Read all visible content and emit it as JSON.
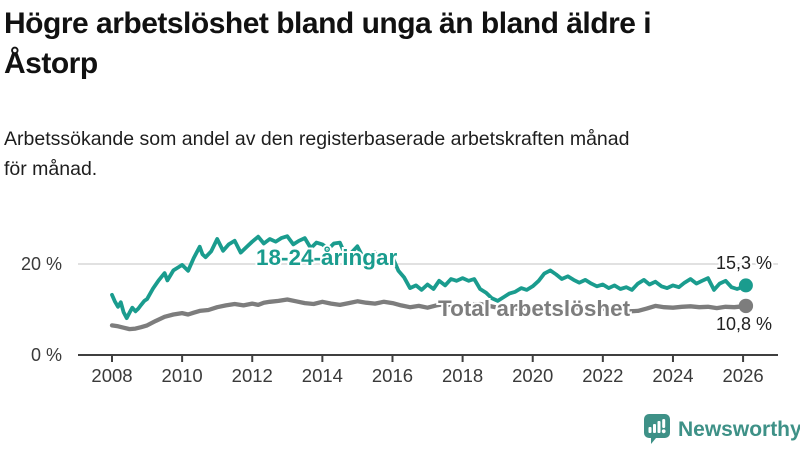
{
  "title": "Högre arbetslöshet bland unga än bland äldre i Åstorp",
  "title_lines": [
    "Högre arbetslöshet bland unga än bland äldre i",
    "Åstorp"
  ],
  "subtitle": "Arbetssökande som andel av den registerbaserade arbetskraften månad för månad.",
  "subtitle_lines": [
    "Arbetssökande som andel av den registerbaserade arbetskraften månad",
    "för månad."
  ],
  "branding": {
    "name": "Newsworthy",
    "icon": "newsworthy-speech-bubble-chart-icon",
    "color": "#3e9187"
  },
  "colors": {
    "background": "#ffffff",
    "young_series": "#1a9c8e",
    "total_series": "#7d7d7d",
    "gridline": "#cfcfcf",
    "axis": "#3f3f3f",
    "tick_text": "#3a3a3a",
    "value_label_text": "#222222"
  },
  "chart_data": {
    "type": "line",
    "title": "Högre arbetslöshet bland unga än bland äldre i Åstorp",
    "subtitle": "Arbetssökande som andel av den registerbaserade arbetskraften månad för månad.",
    "unit": "%",
    "grid": "horizontal-only",
    "legend_position": "inline-labels",
    "x_axis": {
      "range": [
        2007.9,
        2026.6
      ],
      "ticks": [
        "2008",
        "2010",
        "2012",
        "2014",
        "2016",
        "2018",
        "2020",
        "2022",
        "2024",
        "2026"
      ]
    },
    "y_axis": {
      "range": [
        0,
        29
      ],
      "ticks": [
        "0 %",
        "20 %"
      ],
      "tick_values": [
        0,
        20
      ],
      "gridlines": [
        20
      ]
    },
    "series": [
      {
        "name": "18-24-åringar",
        "color": "#1a9c8e",
        "end_label": "15,3 %",
        "end_value": 15.3,
        "points": [
          [
            2008.0,
            13.2
          ],
          [
            2008.08,
            11.8
          ],
          [
            2008.17,
            10.6
          ],
          [
            2008.25,
            11.6
          ],
          [
            2008.33,
            9.4
          ],
          [
            2008.42,
            8.1
          ],
          [
            2008.5,
            9.3
          ],
          [
            2008.58,
            10.4
          ],
          [
            2008.67,
            9.6
          ],
          [
            2008.75,
            10.2
          ],
          [
            2008.83,
            11.0
          ],
          [
            2008.92,
            11.9
          ],
          [
            2009.0,
            12.3
          ],
          [
            2009.17,
            14.6
          ],
          [
            2009.33,
            16.4
          ],
          [
            2009.5,
            18.0
          ],
          [
            2009.58,
            16.4
          ],
          [
            2009.75,
            18.6
          ],
          [
            2009.92,
            19.4
          ],
          [
            2010.0,
            19.8
          ],
          [
            2010.17,
            18.5
          ],
          [
            2010.33,
            21.3
          ],
          [
            2010.5,
            23.8
          ],
          [
            2010.58,
            22.1
          ],
          [
            2010.67,
            21.5
          ],
          [
            2010.83,
            22.8
          ],
          [
            2011.0,
            25.5
          ],
          [
            2011.17,
            22.9
          ],
          [
            2011.33,
            24.3
          ],
          [
            2011.5,
            25.1
          ],
          [
            2011.67,
            22.5
          ],
          [
            2011.83,
            23.7
          ],
          [
            2012.0,
            24.9
          ],
          [
            2012.17,
            26.0
          ],
          [
            2012.33,
            24.5
          ],
          [
            2012.5,
            25.5
          ],
          [
            2012.67,
            24.9
          ],
          [
            2012.83,
            25.7
          ],
          [
            2013.0,
            26.1
          ],
          [
            2013.17,
            24.3
          ],
          [
            2013.33,
            25.1
          ],
          [
            2013.5,
            25.7
          ],
          [
            2013.67,
            23.5
          ],
          [
            2013.83,
            24.7
          ],
          [
            2014.0,
            24.3
          ],
          [
            2014.17,
            23.3
          ],
          [
            2014.33,
            24.5
          ],
          [
            2014.5,
            24.7
          ],
          [
            2014.67,
            21.7
          ],
          [
            2014.83,
            22.5
          ],
          [
            2015.0,
            23.9
          ],
          [
            2015.17,
            21.3
          ],
          [
            2015.33,
            22.1
          ],
          [
            2015.5,
            22.5
          ],
          [
            2015.67,
            20.3
          ],
          [
            2015.83,
            20.9
          ],
          [
            2016.0,
            21.5
          ],
          [
            2016.17,
            18.5
          ],
          [
            2016.33,
            17.1
          ],
          [
            2016.5,
            14.7
          ],
          [
            2016.67,
            15.3
          ],
          [
            2016.83,
            14.3
          ],
          [
            2017.0,
            15.5
          ],
          [
            2017.17,
            14.5
          ],
          [
            2017.33,
            16.3
          ],
          [
            2017.5,
            15.3
          ],
          [
            2017.67,
            16.7
          ],
          [
            2017.83,
            16.3
          ],
          [
            2018.0,
            16.9
          ],
          [
            2018.17,
            16.3
          ],
          [
            2018.33,
            16.7
          ],
          [
            2018.5,
            14.5
          ],
          [
            2018.67,
            13.7
          ],
          [
            2018.83,
            12.5
          ],
          [
            2019.0,
            11.9
          ],
          [
            2019.17,
            12.7
          ],
          [
            2019.33,
            13.5
          ],
          [
            2019.5,
            13.9
          ],
          [
            2019.67,
            14.7
          ],
          [
            2019.83,
            14.3
          ],
          [
            2020.0,
            15.1
          ],
          [
            2020.17,
            16.3
          ],
          [
            2020.33,
            17.9
          ],
          [
            2020.5,
            18.6
          ],
          [
            2020.67,
            17.7
          ],
          [
            2020.83,
            16.7
          ],
          [
            2021.0,
            17.3
          ],
          [
            2021.17,
            16.5
          ],
          [
            2021.33,
            15.9
          ],
          [
            2021.5,
            16.5
          ],
          [
            2021.67,
            15.7
          ],
          [
            2021.83,
            15.1
          ],
          [
            2022.0,
            15.5
          ],
          [
            2022.17,
            14.7
          ],
          [
            2022.33,
            15.3
          ],
          [
            2022.5,
            14.5
          ],
          [
            2022.67,
            14.9
          ],
          [
            2022.83,
            14.3
          ],
          [
            2023.0,
            15.7
          ],
          [
            2023.17,
            16.5
          ],
          [
            2023.33,
            15.5
          ],
          [
            2023.5,
            16.1
          ],
          [
            2023.67,
            15.1
          ],
          [
            2023.83,
            14.7
          ],
          [
            2024.0,
            15.3
          ],
          [
            2024.17,
            14.9
          ],
          [
            2024.33,
            15.9
          ],
          [
            2024.5,
            16.7
          ],
          [
            2024.67,
            15.7
          ],
          [
            2024.83,
            16.3
          ],
          [
            2025.0,
            16.9
          ],
          [
            2025.17,
            14.3
          ],
          [
            2025.33,
            15.7
          ],
          [
            2025.5,
            16.3
          ],
          [
            2025.67,
            14.9
          ],
          [
            2025.83,
            14.5
          ],
          [
            2026.0,
            15.0
          ],
          [
            2026.08,
            15.3
          ]
        ]
      },
      {
        "name": "Total arbetslöshet",
        "color": "#7d7d7d",
        "end_label": "10,8 %",
        "end_value": 10.8,
        "points": [
          [
            2008.0,
            6.5
          ],
          [
            2008.17,
            6.3
          ],
          [
            2008.33,
            6.0
          ],
          [
            2008.5,
            5.7
          ],
          [
            2008.67,
            5.8
          ],
          [
            2008.83,
            6.1
          ],
          [
            2009.0,
            6.5
          ],
          [
            2009.25,
            7.5
          ],
          [
            2009.5,
            8.4
          ],
          [
            2009.75,
            8.9
          ],
          [
            2010.0,
            9.2
          ],
          [
            2010.17,
            8.9
          ],
          [
            2010.33,
            9.3
          ],
          [
            2010.5,
            9.7
          ],
          [
            2010.75,
            9.9
          ],
          [
            2011.0,
            10.5
          ],
          [
            2011.25,
            10.9
          ],
          [
            2011.5,
            11.2
          ],
          [
            2011.75,
            10.9
          ],
          [
            2012.0,
            11.3
          ],
          [
            2012.17,
            11.0
          ],
          [
            2012.33,
            11.5
          ],
          [
            2012.5,
            11.7
          ],
          [
            2012.75,
            11.9
          ],
          [
            2013.0,
            12.2
          ],
          [
            2013.25,
            11.8
          ],
          [
            2013.5,
            11.4
          ],
          [
            2013.75,
            11.2
          ],
          [
            2014.0,
            11.7
          ],
          [
            2014.25,
            11.3
          ],
          [
            2014.5,
            11.0
          ],
          [
            2014.75,
            11.4
          ],
          [
            2015.0,
            11.8
          ],
          [
            2015.25,
            11.5
          ],
          [
            2015.5,
            11.3
          ],
          [
            2015.75,
            11.7
          ],
          [
            2016.0,
            11.4
          ],
          [
            2016.25,
            10.9
          ],
          [
            2016.5,
            10.5
          ],
          [
            2016.75,
            10.8
          ],
          [
            2017.0,
            10.4
          ],
          [
            2017.25,
            10.9
          ],
          [
            2017.5,
            11.2
          ],
          [
            2017.75,
            10.8
          ],
          [
            2018.0,
            10.6
          ],
          [
            2018.25,
            11.0
          ],
          [
            2018.5,
            11.2
          ],
          [
            2018.75,
            10.8
          ],
          [
            2019.0,
            10.4
          ],
          [
            2019.25,
            10.6
          ],
          [
            2019.5,
            10.2
          ],
          [
            2019.75,
            10.4
          ],
          [
            2020.0,
            10.1
          ],
          [
            2020.25,
            10.6
          ],
          [
            2020.5,
            10.9
          ],
          [
            2020.75,
            10.6
          ],
          [
            2021.0,
            10.3
          ],
          [
            2021.25,
            10.5
          ],
          [
            2021.5,
            10.2
          ],
          [
            2021.75,
            10.0
          ],
          [
            2022.0,
            10.2
          ],
          [
            2022.25,
            9.9
          ],
          [
            2022.5,
            9.7
          ],
          [
            2022.75,
            9.6
          ],
          [
            2023.0,
            9.7
          ],
          [
            2023.25,
            10.2
          ],
          [
            2023.5,
            10.8
          ],
          [
            2023.75,
            10.5
          ],
          [
            2024.0,
            10.4
          ],
          [
            2024.25,
            10.6
          ],
          [
            2024.5,
            10.7
          ],
          [
            2024.75,
            10.5
          ],
          [
            2025.0,
            10.6
          ],
          [
            2025.25,
            10.3
          ],
          [
            2025.5,
            10.6
          ],
          [
            2025.75,
            10.5
          ],
          [
            2026.0,
            10.7
          ],
          [
            2026.08,
            10.8
          ]
        ]
      }
    ]
  }
}
